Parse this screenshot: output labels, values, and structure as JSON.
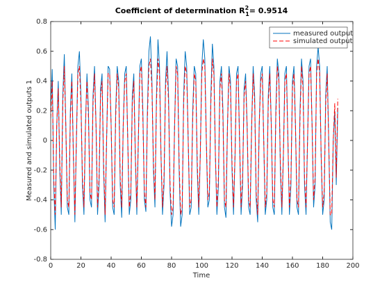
{
  "chart_data": {
    "type": "line",
    "title": {
      "text": "Coefficient of determination R",
      "superscript": "2",
      "subscript": "1",
      "suffix": "= 0.9514"
    },
    "x_label": "Time",
    "y_label": "Measured and simulated outputs 1",
    "xlim": [
      0,
      200
    ],
    "xticks": [
      0,
      20,
      40,
      60,
      80,
      100,
      120,
      140,
      160,
      180,
      200
    ],
    "ylim": [
      -0.8,
      0.8
    ],
    "yticks": [
      -0.8,
      -0.6,
      -0.4,
      -0.2,
      0,
      0.2,
      0.4,
      0.6,
      0.8
    ],
    "legend": "upper right",
    "grid": false,
    "x": [
      0,
      1,
      2,
      3,
      4,
      5,
      6,
      7,
      8,
      9,
      10,
      11,
      12,
      13,
      14,
      15,
      16,
      17,
      18,
      19,
      20,
      21,
      22,
      23,
      24,
      25,
      26,
      27,
      28,
      29,
      30,
      31,
      32,
      33,
      34,
      35,
      36,
      37,
      38,
      39,
      40,
      41,
      42,
      43,
      44,
      45,
      46,
      47,
      48,
      49,
      50,
      51,
      52,
      53,
      54,
      55,
      56,
      57,
      58,
      59,
      60,
      61,
      62,
      63,
      64,
      65,
      66,
      67,
      68,
      69,
      70,
      71,
      72,
      73,
      74,
      75,
      76,
      77,
      78,
      79,
      80,
      81,
      82,
      83,
      84,
      85,
      86,
      87,
      88,
      89,
      90,
      91,
      92,
      93,
      94,
      95,
      96,
      97,
      98,
      99,
      100,
      101,
      102,
      103,
      104,
      105,
      106,
      107,
      108,
      109,
      110,
      111,
      112,
      113,
      114,
      115,
      116,
      117,
      118,
      119,
      120,
      121,
      122,
      123,
      124,
      125,
      126,
      127,
      128,
      129,
      130,
      131,
      132,
      133,
      134,
      135,
      136,
      137,
      138,
      139,
      140,
      141,
      142,
      143,
      144,
      145,
      146,
      147,
      148,
      149,
      150,
      151,
      152,
      153,
      154,
      155,
      156,
      157,
      158,
      159,
      160,
      161,
      162,
      163,
      164,
      165,
      166,
      167,
      168,
      169,
      170,
      171,
      172,
      173,
      174,
      175,
      176,
      177,
      178,
      179,
      180,
      181,
      182,
      183,
      184,
      185,
      186,
      187,
      188,
      189,
      190
    ],
    "series": [
      {
        "name": "measured output",
        "color": "#0072bd",
        "line_style": "solid",
        "values": [
          0.2,
          0.48,
          -0.3,
          -0.6,
          0.1,
          0.4,
          -0.2,
          -0.5,
          0.3,
          0.58,
          0.1,
          -0.45,
          -0.5,
          0.2,
          0.45,
          -0.1,
          -0.55,
          0.0,
          0.5,
          0.6,
          0.3,
          -0.3,
          -0.5,
          0.1,
          0.45,
          0.2,
          -0.4,
          -0.45,
          0.3,
          0.5,
          0.1,
          -0.5,
          -0.3,
          0.35,
          0.45,
          -0.2,
          -0.55,
          0.0,
          0.5,
          0.48,
          0.1,
          -0.45,
          -0.5,
          0.2,
          0.5,
          0.4,
          -0.3,
          -0.52,
          0.1,
          0.45,
          0.5,
          0.0,
          -0.5,
          -0.4,
          0.3,
          0.45,
          -0.1,
          -0.5,
          0.0,
          0.5,
          0.55,
          0.2,
          -0.4,
          -0.48,
          0.2,
          0.6,
          0.7,
          0.4,
          -0.2,
          -0.45,
          0.3,
          0.68,
          0.5,
          -0.1,
          -0.5,
          -0.3,
          0.4,
          0.6,
          0.3,
          -0.35,
          -0.58,
          -0.5,
          0.1,
          0.55,
          0.5,
          -0.2,
          -0.58,
          -0.5,
          0.3,
          0.6,
          0.5,
          0.0,
          -0.5,
          -0.45,
          0.2,
          0.5,
          0.45,
          -0.2,
          -0.5,
          -0.1,
          0.5,
          0.68,
          0.55,
          0.0,
          -0.45,
          -0.4,
          0.3,
          0.65,
          0.5,
          -0.1,
          -0.5,
          -0.3,
          0.4,
          0.5,
          0.2,
          -0.45,
          -0.52,
          0.1,
          0.5,
          0.4,
          -0.2,
          -0.5,
          -0.1,
          0.45,
          0.5,
          0.0,
          -0.5,
          -0.3,
          0.35,
          0.45,
          0.1,
          -0.45,
          -0.5,
          0.1,
          0.5,
          0.3,
          -0.4,
          -0.55,
          0.1,
          0.45,
          0.5,
          0.0,
          -0.5,
          -0.4,
          0.3,
          0.5,
          0.1,
          -0.45,
          -0.5,
          0.2,
          0.55,
          0.45,
          -0.2,
          -0.5,
          -0.1,
          0.45,
          0.5,
          0.0,
          -0.5,
          -0.3,
          0.4,
          0.5,
          0.1,
          -0.45,
          -0.5,
          0.2,
          0.55,
          0.4,
          -0.3,
          -0.5,
          0.0,
          0.5,
          0.55,
          0.1,
          -0.45,
          -0.3,
          0.5,
          0.63,
          0.5,
          -0.1,
          -0.5,
          -0.4,
          0.3,
          0.5,
          0.0,
          -0.55,
          -0.6,
          0.0,
          0.2,
          -0.3,
          0.22
        ]
      },
      {
        "name": "simulated output",
        "color": "#ff0000",
        "line_style": "dashed",
        "values": [
          0.15,
          0.4,
          -0.25,
          -0.5,
          0.1,
          0.35,
          -0.15,
          -0.45,
          0.25,
          0.5,
          0.1,
          -0.4,
          -0.45,
          0.15,
          0.4,
          -0.1,
          -0.5,
          0.0,
          0.45,
          0.5,
          0.25,
          -0.25,
          -0.45,
          0.1,
          0.4,
          0.15,
          -0.35,
          -0.4,
          0.25,
          0.45,
          0.1,
          -0.45,
          -0.25,
          0.3,
          0.4,
          -0.15,
          -0.5,
          0.0,
          0.45,
          0.45,
          0.1,
          -0.4,
          -0.45,
          0.15,
          0.45,
          0.35,
          -0.25,
          -0.45,
          0.1,
          0.4,
          0.45,
          0.0,
          -0.45,
          -0.35,
          0.25,
          0.4,
          -0.1,
          -0.45,
          0.0,
          0.45,
          0.5,
          0.15,
          -0.35,
          -0.45,
          0.15,
          0.5,
          0.55,
          0.35,
          -0.15,
          -0.4,
          0.25,
          0.55,
          0.45,
          -0.1,
          -0.45,
          -0.25,
          0.35,
          0.5,
          0.25,
          -0.3,
          -0.5,
          -0.45,
          0.1,
          0.5,
          0.45,
          -0.15,
          -0.5,
          -0.45,
          0.25,
          0.5,
          0.45,
          0.0,
          -0.45,
          -0.4,
          0.15,
          0.45,
          0.4,
          -0.15,
          -0.45,
          -0.1,
          0.45,
          0.55,
          0.5,
          0.0,
          -0.4,
          -0.35,
          0.25,
          0.55,
          0.45,
          -0.1,
          -0.45,
          -0.25,
          0.35,
          0.45,
          0.15,
          -0.4,
          -0.45,
          0.1,
          0.45,
          0.35,
          -0.15,
          -0.45,
          -0.1,
          0.4,
          0.45,
          0.0,
          -0.45,
          -0.25,
          0.3,
          0.4,
          0.1,
          -0.4,
          -0.45,
          0.1,
          0.45,
          0.25,
          -0.35,
          -0.5,
          0.1,
          0.4,
          0.45,
          0.0,
          -0.45,
          -0.35,
          0.25,
          0.45,
          0.1,
          -0.4,
          -0.45,
          0.15,
          0.5,
          0.4,
          -0.15,
          -0.45,
          -0.1,
          0.4,
          0.45,
          0.0,
          -0.45,
          -0.25,
          0.35,
          0.45,
          0.1,
          -0.4,
          -0.45,
          0.15,
          0.5,
          0.35,
          -0.25,
          -0.45,
          0.0,
          0.45,
          0.5,
          0.1,
          -0.4,
          -0.25,
          0.45,
          0.55,
          0.45,
          -0.1,
          -0.45,
          -0.35,
          0.25,
          0.45,
          0.0,
          -0.5,
          -0.5,
          0.0,
          0.25,
          -0.25,
          0.28
        ]
      }
    ]
  }
}
